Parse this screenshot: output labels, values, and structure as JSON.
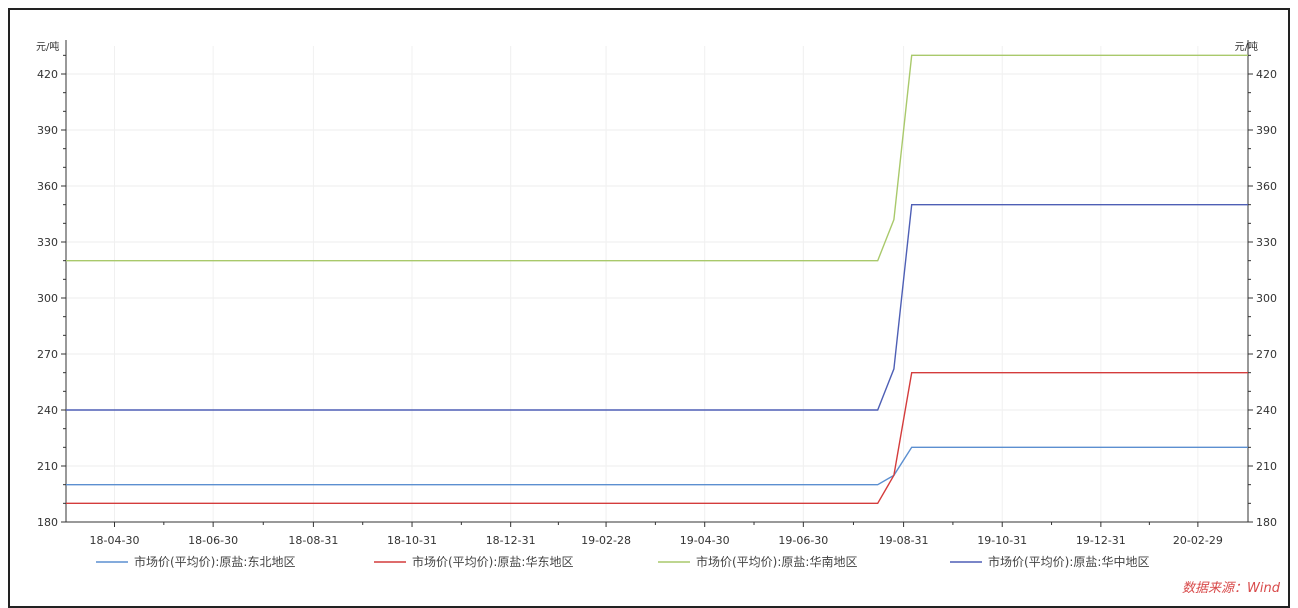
{
  "chart_data": {
    "type": "line",
    "unit_left": "元/吨",
    "unit_right": "元/吨",
    "ylim": [
      180,
      435
    ],
    "yticks": [
      180,
      210,
      240,
      270,
      300,
      330,
      360,
      390,
      420
    ],
    "xticks": [
      "18-04-30",
      "18-06-30",
      "18-08-31",
      "18-10-31",
      "18-12-31",
      "19-02-28",
      "19-04-30",
      "19-06-30",
      "19-08-31",
      "19-10-31",
      "19-12-31",
      "20-02-29"
    ],
    "x_start": "2018-03-31",
    "x_end": "2020-03-31",
    "grid": true,
    "legend_position": "bottom",
    "series": [
      {
        "name": "市场价(平均价):原盐:东北地区",
        "color": "#5b8fd0",
        "points": [
          [
            "2018-03-31",
            200
          ],
          [
            "2019-08-15",
            200
          ],
          [
            "2019-08-25",
            205
          ],
          [
            "2019-09-05",
            220
          ],
          [
            "2020-03-31",
            220
          ]
        ]
      },
      {
        "name": "市场价(平均价):原盐:华东地区",
        "color": "#d43c3c",
        "points": [
          [
            "2018-03-31",
            190
          ],
          [
            "2019-08-15",
            190
          ],
          [
            "2019-08-25",
            205
          ],
          [
            "2019-09-05",
            260
          ],
          [
            "2020-03-31",
            260
          ]
        ]
      },
      {
        "name": "市场价(平均价):原盐:华南地区",
        "color": "#a9c96b",
        "points": [
          [
            "2018-03-31",
            320
          ],
          [
            "2019-08-15",
            320
          ],
          [
            "2019-08-25",
            342
          ],
          [
            "2019-09-05",
            430
          ],
          [
            "2020-03-31",
            430
          ]
        ]
      },
      {
        "name": "市场价(平均价):原盐:华中地区",
        "color": "#4e5fb5",
        "points": [
          [
            "2018-03-31",
            240
          ],
          [
            "2019-08-15",
            240
          ],
          [
            "2019-08-25",
            262
          ],
          [
            "2019-09-05",
            350
          ],
          [
            "2020-03-31",
            350
          ]
        ]
      }
    ]
  },
  "source": "数据来源：Wind"
}
